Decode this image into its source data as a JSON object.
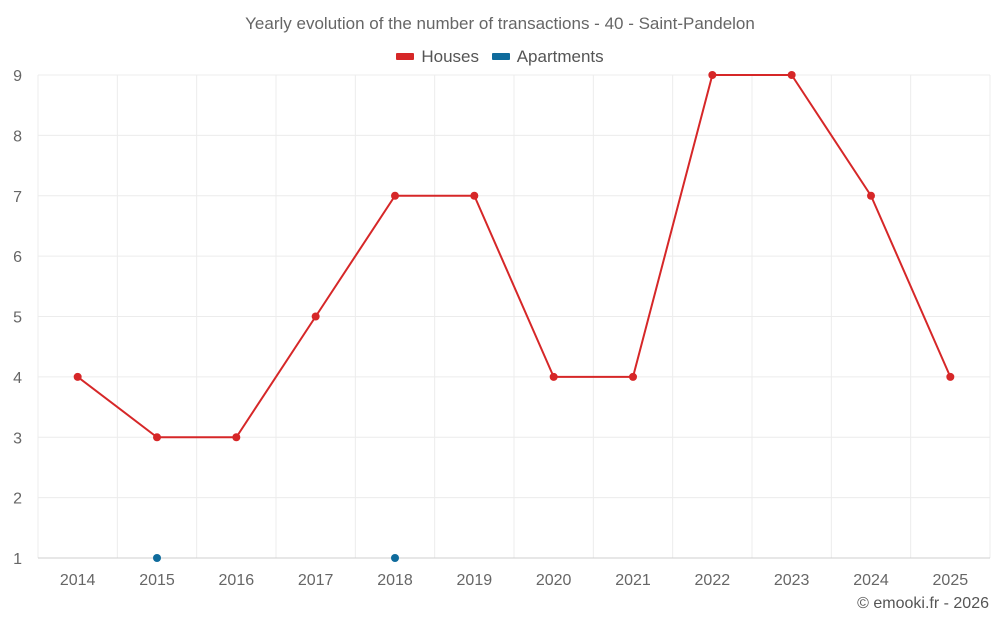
{
  "colors": {
    "houses": "#d62728",
    "apartments": "#0f6b9c",
    "grid": "#ececec",
    "axis": "#cfcfcf"
  },
  "chart_data": {
    "type": "line",
    "title": "Yearly evolution of the number of transactions - 40 - Saint-Pandelon",
    "xlabel": "",
    "ylabel": "",
    "categories": [
      "2014",
      "2015",
      "2016",
      "2017",
      "2018",
      "2019",
      "2020",
      "2021",
      "2022",
      "2023",
      "2024",
      "2025"
    ],
    "ylim": [
      1,
      9
    ],
    "yticks": [
      1,
      2,
      3,
      4,
      5,
      6,
      7,
      8,
      9
    ],
    "grid": true,
    "legend_position": "top-center",
    "series": [
      {
        "name": "Houses",
        "color": "#d62728",
        "values": [
          4,
          3,
          3,
          5,
          7,
          7,
          4,
          4,
          9,
          9,
          7,
          4
        ]
      },
      {
        "name": "Apartments",
        "color": "#0f6b9c",
        "values": [
          null,
          1,
          null,
          null,
          1,
          null,
          null,
          null,
          null,
          null,
          null,
          null
        ]
      }
    ]
  },
  "credit": "© emooki.fr - 2026"
}
